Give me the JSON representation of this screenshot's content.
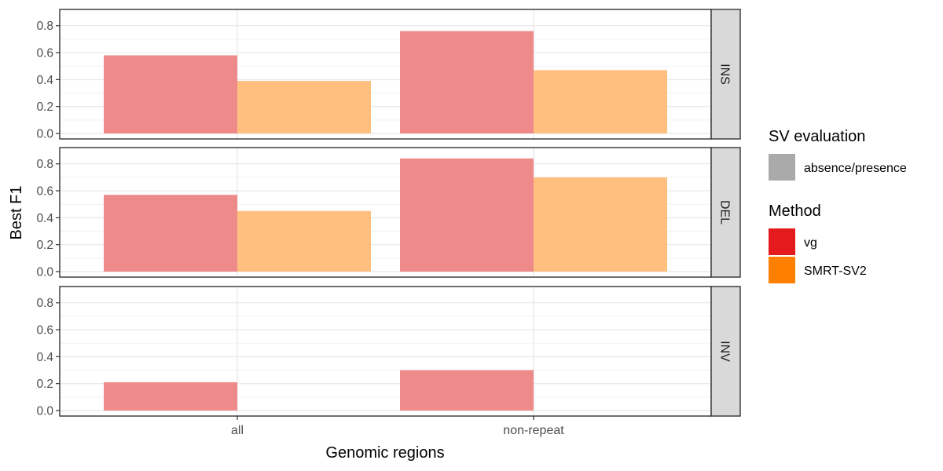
{
  "chart_data": {
    "type": "bar",
    "xlabel": "Genomic regions",
    "ylabel": "Best F1",
    "categories": [
      "all",
      "non-repeat"
    ],
    "ylim": [
      0,
      0.88
    ],
    "yticks": [
      "0.0",
      "0.2",
      "0.4",
      "0.6",
      "0.8"
    ],
    "grid": true,
    "legend_position": "right",
    "facets": [
      {
        "label": "INS",
        "series": [
          {
            "name": "vg",
            "values": [
              0.58,
              0.76
            ]
          },
          {
            "name": "SMRT-SV2",
            "values": [
              0.39,
              0.47
            ]
          }
        ]
      },
      {
        "label": "DEL",
        "series": [
          {
            "name": "vg",
            "values": [
              0.57,
              0.84
            ]
          },
          {
            "name": "SMRT-SV2",
            "values": [
              0.45,
              0.7
            ]
          }
        ]
      },
      {
        "label": "INV",
        "series": [
          {
            "name": "vg",
            "values": [
              0.21,
              0.3
            ]
          },
          {
            "name": "SMRT-SV2",
            "values": [
              0,
              0
            ]
          }
        ]
      }
    ],
    "legends": [
      {
        "title": "SV evaluation",
        "items": [
          {
            "label": "absence/presence",
            "color": "#aaaaaa"
          }
        ]
      },
      {
        "title": "Method",
        "items": [
          {
            "label": "vg",
            "color": "#e41a1c"
          },
          {
            "label": "SMRT-SV2",
            "color": "#ff7f00"
          }
        ]
      }
    ],
    "colors": {
      "vg": "#ef8a8b",
      "SMRT-SV2": "#ffbf7f"
    }
  }
}
